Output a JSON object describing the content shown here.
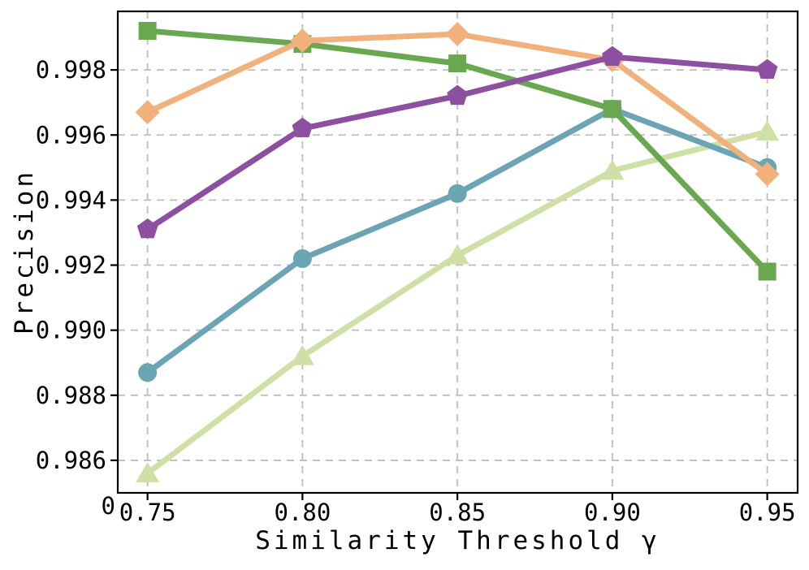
{
  "chart_data": {
    "type": "line",
    "title": "",
    "xlabel": "Similarity Threshold γ",
    "ylabel": "Precision",
    "x": [
      0.75,
      0.8,
      0.85,
      0.9,
      0.95
    ],
    "xtick_labels": [
      "0.75",
      "0.80",
      "0.85",
      "0.90",
      "0.95"
    ],
    "ytick_values": [
      0.986,
      0.988,
      0.99,
      0.992,
      0.994,
      0.996,
      0.998
    ],
    "ytick_labels": [
      "0.986",
      "0.988",
      "0.990",
      "0.992",
      "0.994",
      "0.996",
      "0.998"
    ],
    "origin_tick_label": "0",
    "xlim": [
      0.7404,
      0.9598
    ],
    "ylim": [
      0.985,
      0.9998
    ],
    "grid": {
      "on": true,
      "style": "dashed",
      "color": "#bdbdbd"
    },
    "legend_position": "none",
    "axis_color": "#000000",
    "background_color": "#ffffff",
    "series": [
      {
        "name": "triangle-series",
        "marker": "triangle-up",
        "color": "#cfe0a6",
        "values": [
          0.9856,
          0.9892,
          0.9923,
          0.9949,
          0.9961
        ]
      },
      {
        "name": "circle-series",
        "marker": "circle",
        "color": "#6ba4b2",
        "values": [
          0.9887,
          0.9922,
          0.9942,
          0.9968,
          0.995
        ]
      },
      {
        "name": "square-series",
        "marker": "square",
        "color": "#69a850",
        "values": [
          0.9992,
          0.9988,
          0.9982,
          0.9968,
          0.9918
        ]
      },
      {
        "name": "diamond-series",
        "marker": "diamond",
        "color": "#f0b17d",
        "values": [
          0.9967,
          0.9989,
          0.9991,
          0.9983,
          0.9948
        ]
      },
      {
        "name": "pentagon-series",
        "marker": "pentagon",
        "color": "#8d50a0",
        "values": [
          0.9931,
          0.9962,
          0.9972,
          0.9984,
          0.998
        ]
      }
    ]
  }
}
